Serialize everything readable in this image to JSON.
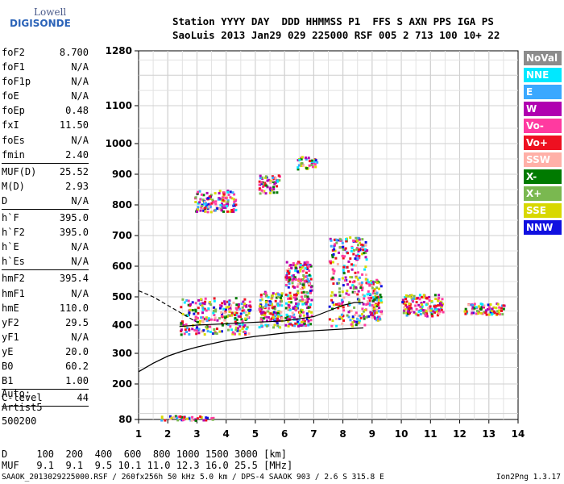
{
  "logo": {
    "line1": "Lowell",
    "line2": "DIGISONDE"
  },
  "header": {
    "line1": "Station YYYY DAY  DDD HHMMSS P1  FFS S AXN PPS IGA PS",
    "line2": "SaoLuis 2013 Jan29 029 225000 RSF 005 2 713 100 10+ 22"
  },
  "params": [
    [
      {
        "k": "foF2",
        "v": "8.700"
      },
      {
        "k": "foF1",
        "v": "N/A"
      },
      {
        "k": "foF1p",
        "v": "N/A"
      },
      {
        "k": "foE",
        "v": "N/A"
      },
      {
        "k": "foEp",
        "v": "0.48"
      },
      {
        "k": "fxI",
        "v": "11.50"
      },
      {
        "k": "foEs",
        "v": "N/A"
      },
      {
        "k": "fmin",
        "v": "2.40"
      }
    ],
    [
      {
        "k": "MUF(D)",
        "v": "25.52"
      },
      {
        "k": "M(D)",
        "v": "2.93"
      },
      {
        "k": "D",
        "v": "N/A"
      }
    ],
    [
      {
        "k": "h`F",
        "v": "395.0"
      },
      {
        "k": "h`F2",
        "v": "395.0"
      },
      {
        "k": "h`E",
        "v": "N/A"
      },
      {
        "k": "h`Es",
        "v": "N/A"
      }
    ],
    [
      {
        "k": "hmF2",
        "v": "395.4"
      },
      {
        "k": "hmF1",
        "v": "N/A"
      },
      {
        "k": "hmE",
        "v": "110.0"
      },
      {
        "k": "yF2",
        "v": "29.5"
      },
      {
        "k": "yF1",
        "v": "N/A"
      },
      {
        "k": "yE",
        "v": "20.0"
      },
      {
        "k": "B0",
        "v": "60.2"
      },
      {
        "k": "B1",
        "v": "1.00"
      }
    ],
    [
      {
        "k": "C-level",
        "v": "44"
      }
    ]
  ],
  "auto": {
    "line1": "Auto:",
    "line2": "Artist5",
    "line3": "500200"
  },
  "legend": [
    {
      "label": "NoVal",
      "bg": "#8c8c8c",
      "fg": "#ffffff"
    },
    {
      "label": "NNE",
      "bg": "#00e8ff",
      "fg": "#ffffff"
    },
    {
      "label": "E",
      "bg": "#3aa8ff",
      "fg": "#ffffff"
    },
    {
      "label": "W",
      "bg": "#b000b0",
      "fg": "#ffffff"
    },
    {
      "label": "Vo-",
      "bg": "#ff3aa0",
      "fg": "#ffffff"
    },
    {
      "label": "Vo+",
      "bg": "#ee1020",
      "fg": "#ffffff"
    },
    {
      "label": "SSW",
      "bg": "#ffb0a8",
      "fg": "#ffffff"
    },
    {
      "label": "X-",
      "bg": "#007a00",
      "fg": "#ffffff"
    },
    {
      "label": "X+",
      "bg": "#7ab850",
      "fg": "#ffffff"
    },
    {
      "label": "SSE",
      "bg": "#d8d800",
      "fg": "#ffffff"
    },
    {
      "label": "NNW",
      "bg": "#1010e0",
      "fg": "#ffffff"
    }
  ],
  "muf_table": {
    "line1": "D     100  200  400  600  800 1000 1500 3000 [km]",
    "line2": "MUF   9.1  9.1  9.5 10.1 11.0 12.3 16.0 25.5 [MHz]"
  },
  "footer": {
    "left": "SAAOK_2013029225000.RSF / 260fx256h 50 kHz 5.0 km / DPS-4 SAAOK 903 / 2.6 S 315.8 E",
    "right": "Ion2Png 1.3.17"
  },
  "chart_data": {
    "type": "scatter",
    "xlabel": "",
    "ylabel": "",
    "xlim": [
      1,
      14
    ],
    "ylim": [
      80,
      1280
    ],
    "xticks": [
      1,
      2,
      3,
      4,
      5,
      6,
      7,
      8,
      9,
      10,
      11,
      12,
      13,
      14
    ],
    "yticks": [
      80,
      200,
      300,
      400,
      500,
      600,
      700,
      800,
      900,
      1000,
      1100,
      1280
    ],
    "grid": true,
    "legend_position": "right",
    "echo_clusters": [
      {
        "x_range": [
          2.4,
          4.8
        ],
        "y_range": [
          370,
          500
        ]
      },
      {
        "x_range": [
          5.1,
          5.9
        ],
        "y_range": [
          395,
          520
        ]
      },
      {
        "x_range": [
          6.0,
          6.9
        ],
        "y_range": [
          400,
          620
        ]
      },
      {
        "x_range": [
          7.5,
          8.8
        ],
        "y_range": [
          400,
          700
        ]
      },
      {
        "x_range": [
          8.8,
          9.3
        ],
        "y_range": [
          420,
          560
        ]
      },
      {
        "x_range": [
          10.0,
          11.4
        ],
        "y_range": [
          435,
          510
        ]
      },
      {
        "x_range": [
          12.1,
          13.5
        ],
        "y_range": [
          440,
          480
        ]
      },
      {
        "x_range": [
          2.9,
          4.3
        ],
        "y_range": [
          780,
          850
        ]
      },
      {
        "x_range": [
          5.1,
          5.8
        ],
        "y_range": [
          840,
          900
        ]
      },
      {
        "x_range": [
          6.4,
          7.1
        ],
        "y_range": [
          920,
          960
        ]
      },
      {
        "x_range": [
          1.7,
          3.6
        ],
        "y_range": [
          80,
          95
        ]
      }
    ],
    "profile_curve": {
      "x": [
        1.0,
        1.5,
        2.0,
        2.5,
        3.0,
        3.5,
        4.0,
        5.0,
        6.0,
        7.0,
        8.0,
        8.7
      ],
      "y": [
        235,
        265,
        290,
        308,
        322,
        334,
        345,
        360,
        372,
        380,
        386,
        390
      ]
    },
    "trace_dashed": {
      "x": [
        1.0,
        1.5,
        2.0,
        2.5,
        3.0
      ],
      "y": [
        520,
        500,
        470,
        440,
        410
      ]
    },
    "trace_solid": {
      "x": [
        2.4,
        3.0,
        4.0,
        5.0,
        6.0,
        7.0,
        7.5,
        8.0,
        8.4,
        8.7
      ],
      "y": [
        395,
        400,
        405,
        410,
        415,
        430,
        450,
        470,
        480,
        480
      ]
    }
  }
}
